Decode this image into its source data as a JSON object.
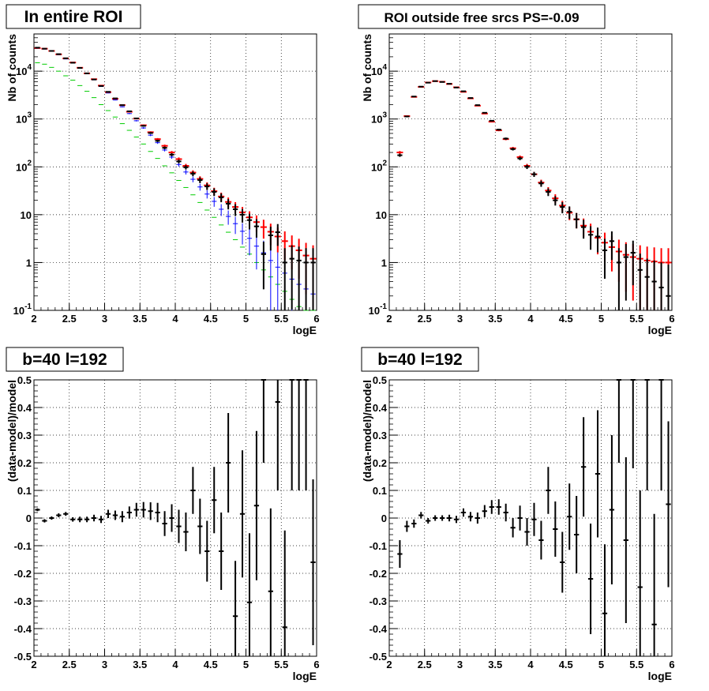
{
  "colors": {
    "data": "#000000",
    "total_model": "#0000ff",
    "diffuse_model": "#00cc00",
    "model": "#ff0000",
    "grid": "#000000"
  },
  "chart_data": [
    {
      "type": "scatter",
      "panel": "top-left",
      "title": "In entire ROI",
      "xlabel": "logE",
      "ylabel": "Nb of counts",
      "log_y": true,
      "grid": true,
      "xlim": [
        2,
        6
      ],
      "ylim": [
        0.1,
        60000
      ],
      "x_ticks": [
        "2",
        "2.5",
        "3",
        "3.5",
        "4",
        "4.5",
        "5",
        "5.5",
        "6"
      ],
      "y_ticks": [
        "10^-1",
        "1",
        "10",
        "10^2",
        "10^3",
        "10^4"
      ],
      "bin_width": 0.1,
      "series": [
        {
          "role": "diffuse",
          "color": "#00cc00",
          "err": false,
          "x": [
            2.05,
            2.15,
            2.25,
            2.35,
            2.45,
            2.55,
            2.65,
            2.75,
            2.85,
            2.95,
            3.05,
            3.15,
            3.25,
            3.35,
            3.45,
            3.55,
            3.65,
            3.75,
            3.85,
            3.95,
            4.05,
            4.15,
            4.25,
            4.35,
            4.45,
            4.55,
            4.65,
            4.75,
            4.85,
            4.95,
            5.05,
            5.15,
            5.25,
            5.35,
            5.45,
            5.55,
            5.65,
            5.75,
            5.85,
            5.95
          ],
          "y": [
            15000,
            14000,
            12000,
            10000,
            8000,
            6500,
            5000,
            3800,
            2800,
            2000,
            1500,
            1100,
            800,
            580,
            420,
            300,
            210,
            150,
            105,
            75,
            52,
            37,
            26,
            18,
            12.5,
            8.8,
            6.1,
            4.3,
            3.0,
            2.1,
            1.5,
            1.0,
            0.7,
            0.5,
            0.35,
            0.25,
            0.17,
            0.12,
            0.09,
            0.07
          ]
        },
        {
          "role": "total",
          "color": "#0000ff",
          "err": true,
          "x": [
            2.05,
            2.15,
            2.25,
            2.35,
            2.45,
            2.55,
            2.65,
            2.75,
            2.85,
            2.95,
            3.05,
            3.15,
            3.25,
            3.35,
            3.45,
            3.55,
            3.65,
            3.75,
            3.85,
            3.95,
            4.05,
            4.15,
            4.25,
            4.35,
            4.45,
            4.55,
            4.65,
            4.75,
            4.85,
            4.95,
            5.05,
            5.15,
            5.25,
            5.35,
            5.45,
            5.55,
            5.65,
            5.75,
            5.85,
            5.95
          ],
          "y": [
            30000,
            29000,
            26000,
            22000,
            18000,
            15000,
            11500,
            8800,
            6600,
            4800,
            3500,
            2500,
            1800,
            1300,
            920,
            650,
            460,
            320,
            225,
            160,
            112,
            78,
            55,
            38,
            27,
            19,
            13,
            9.2,
            6.5,
            4.5,
            3.2,
            2.2,
            1.6,
            1.1,
            0.8,
            0.6,
            0.45,
            0.35,
            0.28,
            0.22
          ]
        },
        {
          "role": "model",
          "color": "#ff0000",
          "err": true,
          "x": [
            2.05,
            2.15,
            2.25,
            2.35,
            2.45,
            2.55,
            2.65,
            2.75,
            2.85,
            2.95,
            3.05,
            3.15,
            3.25,
            3.35,
            3.45,
            3.55,
            3.65,
            3.75,
            3.85,
            3.95,
            4.05,
            4.15,
            4.25,
            4.35,
            4.45,
            4.55,
            4.65,
            4.75,
            4.85,
            4.95,
            5.05,
            5.15,
            5.25,
            5.35,
            5.45,
            5.55,
            5.65,
            5.75,
            5.85,
            5.95
          ],
          "y": [
            30500,
            29500,
            26500,
            22500,
            18500,
            15200,
            11800,
            9000,
            6800,
            5000,
            3650,
            2650,
            1950,
            1420,
            1020,
            740,
            530,
            380,
            275,
            200,
            145,
            105,
            76,
            56,
            41,
            31,
            24,
            18.5,
            14.5,
            11.2,
            8.8,
            7.0,
            5.5,
            4.4,
            3.5,
            2.8,
            2.2,
            1.8,
            1.4,
            1.2
          ]
        },
        {
          "role": "data",
          "color": "#000000",
          "err": true,
          "x": [
            2.05,
            2.15,
            2.25,
            2.35,
            2.45,
            2.55,
            2.65,
            2.75,
            2.85,
            2.95,
            3.05,
            3.15,
            3.25,
            3.35,
            3.45,
            3.55,
            3.65,
            3.75,
            3.85,
            3.95,
            4.05,
            4.15,
            4.25,
            4.35,
            4.45,
            4.55,
            4.65,
            4.75,
            4.85,
            4.95,
            5.05,
            5.15,
            5.25,
            5.35,
            5.45,
            5.55,
            5.65,
            5.75,
            5.85,
            5.95
          ],
          "y": [
            31000,
            29500,
            26500,
            22700,
            18600,
            15000,
            11700,
            9000,
            6700,
            4900,
            3700,
            2700,
            1950,
            1450,
            1030,
            720,
            510,
            350,
            250,
            180,
            130,
            98,
            72,
            53,
            39,
            30,
            23,
            17,
            13,
            10,
            7.7,
            5.7,
            1.5,
            3.7,
            4.3,
            1.0,
            1.2,
            1.1,
            1.0,
            1.0
          ]
        }
      ]
    },
    {
      "type": "scatter",
      "panel": "top-right",
      "title": "ROI outside free srcs PS=-0.09",
      "xlabel": "logE",
      "ylabel": "Nb of counts",
      "log_y": true,
      "grid": true,
      "xlim": [
        2,
        6
      ],
      "ylim": [
        0.1,
        60000
      ],
      "x_ticks": [
        "2",
        "2.5",
        "3",
        "3.5",
        "4",
        "4.5",
        "5",
        "5.5",
        "6"
      ],
      "y_ticks": [
        "10^-1",
        "1",
        "10",
        "10^2",
        "10^3",
        "10^4"
      ],
      "bin_width": 0.1,
      "series": [
        {
          "role": "model",
          "color": "#ff0000",
          "err": true,
          "x": [
            2.15,
            2.25,
            2.35,
            2.45,
            2.55,
            2.65,
            2.75,
            2.85,
            2.95,
            3.05,
            3.15,
            3.25,
            3.35,
            3.45,
            3.55,
            3.65,
            3.75,
            3.85,
            3.95,
            4.05,
            4.15,
            4.25,
            4.35,
            4.45,
            4.55,
            4.65,
            4.75,
            4.85,
            4.95,
            5.05,
            5.15,
            5.25,
            5.35,
            5.45,
            5.55,
            5.65,
            5.75,
            5.85,
            5.95
          ],
          "y": [
            200,
            1150,
            2900,
            4700,
            5800,
            6200,
            6000,
            5400,
            4600,
            3700,
            2700,
            1900,
            1300,
            880,
            580,
            380,
            245,
            160,
            105,
            70,
            47,
            32,
            22,
            15.5,
            11,
            8,
            5.9,
            4.4,
            3.3,
            2.6,
            2.1,
            1.7,
            1.45,
            1.3,
            1.2,
            1.1,
            1.05,
            1.0,
            1.0
          ]
        },
        {
          "role": "data",
          "color": "#000000",
          "err": true,
          "x": [
            2.15,
            2.25,
            2.35,
            2.45,
            2.55,
            2.65,
            2.75,
            2.85,
            2.95,
            3.05,
            3.15,
            3.25,
            3.35,
            3.45,
            3.55,
            3.65,
            3.75,
            3.85,
            3.95,
            4.05,
            4.15,
            4.25,
            4.35,
            4.45,
            4.55,
            4.65,
            4.75,
            4.85,
            4.95,
            5.05,
            5.15,
            5.25,
            5.35,
            5.45,
            5.55,
            5.65,
            5.75,
            5.85,
            5.95
          ],
          "y": [
            175,
            1130,
            2950,
            4750,
            5750,
            6200,
            5950,
            5450,
            4550,
            3800,
            2750,
            1950,
            1350,
            920,
            600,
            390,
            235,
            150,
            100,
            70,
            45,
            30,
            20,
            14.5,
            11.5,
            8,
            5.5,
            3.8,
            3.5,
            1.8,
            2.8,
            1.0,
            1.3,
            1.6,
            0.7,
            0.5,
            0.4,
            0.3,
            0.2
          ]
        }
      ]
    },
    {
      "type": "scatter",
      "panel": "bottom-left",
      "title": "b=40 l=192",
      "xlabel": "logE",
      "ylabel": "(data-model)/model",
      "log_y": false,
      "grid": true,
      "xlim": [
        2,
        6
      ],
      "ylim": [
        -0.5,
        0.5
      ],
      "x_ticks": [
        "2",
        "2.5",
        "3",
        "3.5",
        "4",
        "4.5",
        "5",
        "5.5",
        "6"
      ],
      "y_ticks": [
        "-0.5",
        "-0.4",
        "-0.3",
        "-0.2",
        "-0.1",
        "0",
        "0.1",
        "0.2",
        "0.3",
        "0.4",
        "0.5"
      ],
      "bin_width": 0.1,
      "series": [
        {
          "role": "data",
          "color": "#000000",
          "err": [
            0.005,
            0.006,
            0.006,
            0.007,
            0.007,
            0.008,
            0.01,
            0.01,
            0.012,
            0.013,
            0.015,
            0.017,
            0.02,
            0.022,
            0.025,
            0.028,
            0.032,
            0.035,
            0.045,
            0.05,
            0.06,
            0.07,
            0.085,
            0.1,
            0.11,
            0.12,
            0.14,
            0.18,
            0.2,
            0.23,
            0.25,
            0.27,
            0.3,
            0.3,
            0.32,
            0.35,
            0.4,
            0.4,
            0.4,
            0.3
          ],
          "x": [
            2.05,
            2.15,
            2.25,
            2.35,
            2.45,
            2.55,
            2.65,
            2.75,
            2.85,
            2.95,
            3.05,
            3.15,
            3.25,
            3.35,
            3.45,
            3.55,
            3.65,
            3.75,
            3.85,
            3.95,
            4.05,
            4.15,
            4.25,
            4.35,
            4.45,
            4.55,
            4.65,
            4.75,
            4.85,
            4.95,
            5.05,
            5.15,
            5.25,
            5.35,
            5.45,
            5.55,
            5.65,
            5.75,
            5.85,
            5.95
          ],
          "y": [
            0.03,
            -0.01,
            0.0,
            0.01,
            0.015,
            -0.005,
            -0.005,
            -0.005,
            0.0,
            -0.005,
            0.015,
            0.01,
            0.005,
            0.02,
            0.03,
            0.03,
            0.025,
            0.02,
            -0.02,
            0.0,
            -0.03,
            -0.05,
            0.1,
            -0.03,
            -0.12,
            0.065,
            -0.12,
            0.2,
            -0.355,
            0.015,
            -0.305,
            0.045,
            0.5,
            -0.265,
            0.42,
            -0.395,
            0.5,
            0.5,
            0.5,
            -0.16
          ]
        }
      ]
    },
    {
      "type": "scatter",
      "panel": "bottom-right",
      "title": "b=40 l=192",
      "xlabel": "logE",
      "ylabel": "(data-model)/model",
      "log_y": false,
      "grid": true,
      "xlim": [
        2,
        6
      ],
      "ylim": [
        -0.5,
        0.5
      ],
      "x_ticks": [
        "2",
        "2.5",
        "3",
        "3.5",
        "4",
        "4.5",
        "5",
        "5.5",
        "6"
      ],
      "y_ticks": [
        "-0.5",
        "-0.4",
        "-0.3",
        "-0.2",
        "-0.1",
        "0",
        "0.1",
        "0.2",
        "0.3",
        "0.4",
        "0.5"
      ],
      "bin_width": 0.1,
      "series": [
        {
          "role": "data",
          "color": "#000000",
          "err": [
            0.05,
            0.02,
            0.015,
            0.012,
            0.01,
            0.01,
            0.01,
            0.012,
            0.013,
            0.015,
            0.017,
            0.02,
            0.022,
            0.025,
            0.028,
            0.032,
            0.035,
            0.045,
            0.05,
            0.06,
            0.07,
            0.085,
            0.1,
            0.11,
            0.12,
            0.14,
            0.18,
            0.2,
            0.23,
            0.25,
            0.27,
            0.3,
            0.3,
            0.32,
            0.35,
            0.4,
            0.4,
            0.4,
            0.3
          ],
          "x": [
            2.15,
            2.25,
            2.35,
            2.45,
            2.55,
            2.65,
            2.75,
            2.85,
            2.95,
            3.05,
            3.15,
            3.25,
            3.35,
            3.45,
            3.55,
            3.65,
            3.75,
            3.85,
            3.95,
            4.05,
            4.15,
            4.25,
            4.35,
            4.45,
            4.55,
            4.65,
            4.75,
            4.85,
            4.95,
            5.05,
            5.15,
            5.25,
            5.35,
            5.45,
            5.55,
            5.65,
            5.75,
            5.85,
            5.95
          ],
          "y": [
            -0.13,
            -0.03,
            -0.02,
            0.01,
            -0.01,
            0.0,
            0.0,
            0.0,
            -0.005,
            0.02,
            0.005,
            0.0,
            0.025,
            0.04,
            0.04,
            0.02,
            -0.035,
            0.0,
            -0.05,
            -0.005,
            -0.08,
            0.1,
            -0.04,
            -0.16,
            0.005,
            -0.06,
            0.185,
            -0.22,
            0.16,
            -0.345,
            0.03,
            0.5,
            -0.08,
            0.5,
            -0.25,
            0.5,
            -0.385,
            0.5,
            0.05
          ]
        }
      ]
    }
  ]
}
